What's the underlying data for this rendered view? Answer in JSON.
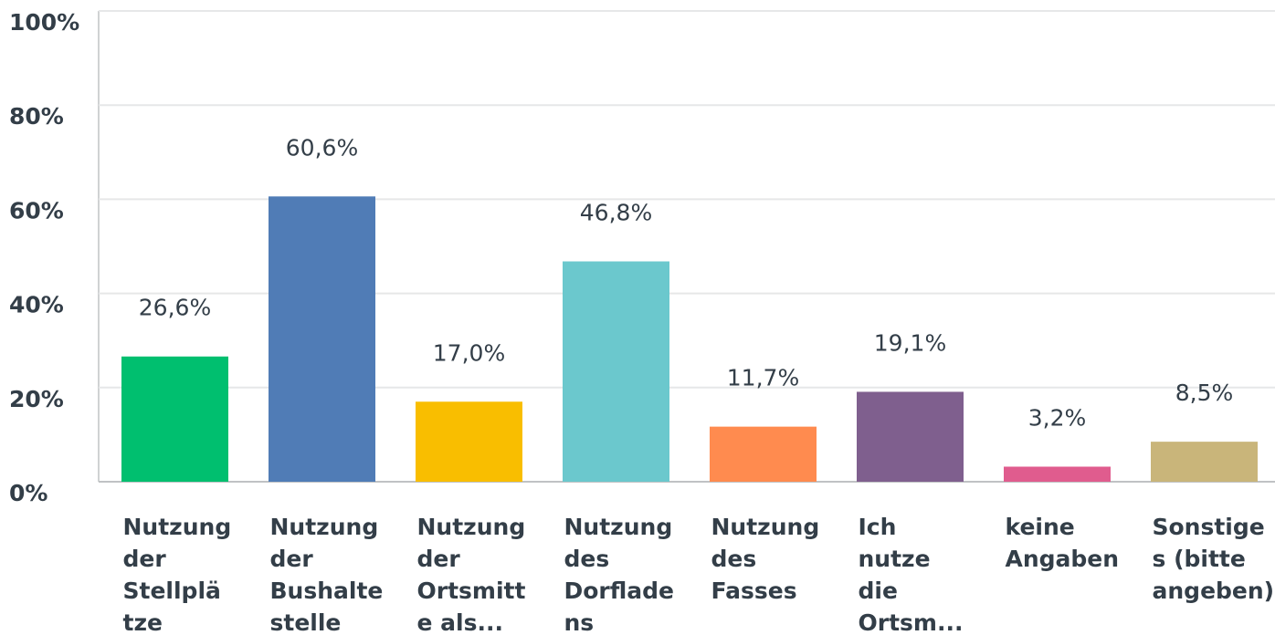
{
  "chart_data": {
    "type": "bar",
    "categories": [
      "Nutzung der Stellplätze",
      "Nutzung der Bushaltestelle",
      "Nutzung der Ortsmitte als...",
      "Nutzung des Dorfladens",
      "Nutzung des Fasses",
      "Ich nutze die Ortsm...",
      "keine Angaben",
      "Sonstiges (bitte angeben)"
    ],
    "values": [
      26.6,
      60.6,
      17.0,
      46.8,
      11.7,
      19.1,
      3.2,
      8.5
    ],
    "value_labels": [
      "26,6%",
      "60,6%",
      "17,0%",
      "46,8%",
      "11,7%",
      "19,1%",
      "3,2%",
      "8,5%"
    ],
    "colors": [
      "#00bf6f",
      "#507cb6",
      "#f9be00",
      "#6bc8cd",
      "#ff8b4f",
      "#7f5f8e",
      "#e05c8e",
      "#c9b57a"
    ],
    "ylim": [
      0,
      100
    ],
    "yticks": [
      {
        "value": 0,
        "label": "0%"
      },
      {
        "value": 20,
        "label": "20%"
      },
      {
        "value": 40,
        "label": "40%"
      },
      {
        "value": 60,
        "label": "60%"
      },
      {
        "value": 80,
        "label": "80%"
      },
      {
        "value": 100,
        "label": "100%"
      }
    ],
    "grid": true
  }
}
